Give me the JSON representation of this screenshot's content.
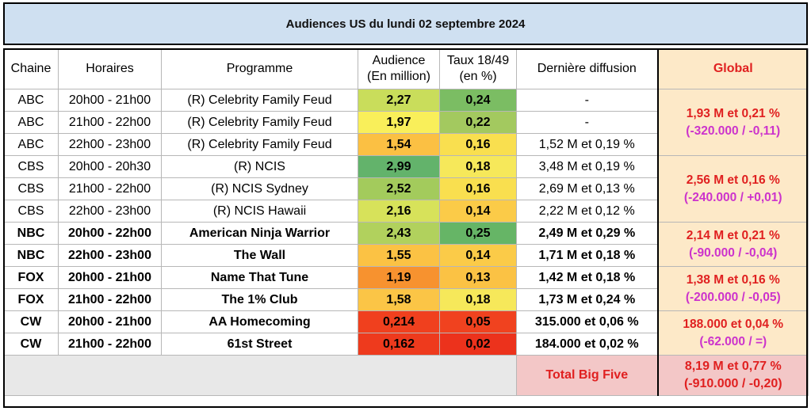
{
  "title": "Audiences US du lundi 02 septembre 2024",
  "headers": {
    "chaine": "Chaine",
    "horaires": "Horaires",
    "programme": "Programme",
    "audience_l1": "Audience",
    "audience_l2": "(En million)",
    "taux_l1": "Taux 18/49",
    "taux_l2": "(en %)",
    "derniere": "Dernière diffusion",
    "global": "Global"
  },
  "rows": [
    {
      "chaine": "ABC",
      "horaires": "20h00 - 21h00",
      "programme": "(R) Celebrity Family Feud",
      "audience": "2,27",
      "taux": "0,24",
      "derniere": "-",
      "aud_color": "#c9dd5b",
      "rat_color": "#7bbd63"
    },
    {
      "chaine": "ABC",
      "horaires": "21h00 - 22h00",
      "programme": "(R) Celebrity Family Feud",
      "audience": "1,97",
      "taux": "0,22",
      "derniere": "-",
      "aud_color": "#f9ef5a",
      "rat_color": "#a3c95f"
    },
    {
      "chaine": "ABC",
      "horaires": "22h00 - 23h00",
      "programme": "(R) Celebrity Family Feud",
      "audience": "1,54",
      "taux": "0,16",
      "derniere": "1,52 M et 0,19 %",
      "aud_color": "#fbc043",
      "rat_color": "#f9df4f"
    },
    {
      "chaine": "CBS",
      "horaires": "20h00 - 20h30",
      "programme": "(R) NCIS",
      "audience": "2,99",
      "taux": "0,18",
      "derniere": "3,48 M et 0,19 %",
      "aud_color": "#63b36b",
      "rat_color": "#f6e85a"
    },
    {
      "chaine": "CBS",
      "horaires": "21h00 - 22h00",
      "programme": "(R) NCIS Sydney",
      "audience": "2,52",
      "taux": "0,16",
      "derniere": "2,69 M et 0,13 %",
      "aud_color": "#a3cb5c",
      "rat_color": "#f9df4f"
    },
    {
      "chaine": "CBS",
      "horaires": "22h00 - 23h00",
      "programme": "(R) NCIS Hawaii",
      "audience": "2,16",
      "taux": "0,14",
      "derniere": "2,22 M et 0,12 %",
      "aud_color": "#d7e25a",
      "rat_color": "#fbcb48"
    },
    {
      "chaine": "NBC",
      "horaires": "20h00 - 22h00",
      "programme": "American Ninja Warrior",
      "audience": "2,43",
      "taux": "0,25",
      "derniere": "2,49 M et 0,29 %",
      "aud_color": "#b1d15d",
      "rat_color": "#66b566"
    },
    {
      "chaine": "NBC",
      "horaires": "22h00 - 23h00",
      "programme": "The Wall",
      "audience": "1,55",
      "taux": "0,14",
      "derniere": "1,71 M et 0,18 %",
      "aud_color": "#fbc244",
      "rat_color": "#fbcb48"
    },
    {
      "chaine": "FOX",
      "horaires": "20h00 - 21h00",
      "programme": "Name That Tune",
      "audience": "1,19",
      "taux": "0,13",
      "derniere": "1,42 M et 0,18 %",
      "aud_color": "#f7922f",
      "rat_color": "#fbc244"
    },
    {
      "chaine": "FOX",
      "horaires": "21h00 - 22h00",
      "programme": "The 1% Club",
      "audience": "1,58",
      "taux": "0,18",
      "derniere": "1,73 M et 0,24 %",
      "aud_color": "#fbc546",
      "rat_color": "#f6e85a"
    },
    {
      "chaine": "CW",
      "horaires": "20h00 - 21h00",
      "programme": "AA Homecoming",
      "audience": "0,214",
      "taux": "0,05",
      "derniere": "315.000 et 0,06 %",
      "aud_color": "#f0401e",
      "rat_color": "#f0421f"
    },
    {
      "chaine": "CW",
      "horaires": "21h00 - 22h00",
      "programme": "61st Street",
      "audience": "0,162",
      "taux": "0,02",
      "derniere": "184.000 et 0,02 %",
      "aud_color": "#ee3a1d",
      "rat_color": "#ec321c"
    }
  ],
  "globals": [
    {
      "l1": "1,93 M et 0,21 %",
      "l2": "(-320.000 / -0,11)"
    },
    {
      "l1": "2,56 M et 0,16 %",
      "l2": "(-240.000 / +0,01)"
    },
    {
      "l1": "2,14 M et 0,21 %",
      "l2": "(-90.000 / -0,04)"
    },
    {
      "l1": "1,38 M et 0,16 %",
      "l2": "(-200.000 / -0,05)"
    },
    {
      "l1": "188.000 et 0,04 %",
      "l2": "(-62.000 / =)"
    }
  ],
  "total": {
    "label": "Total Big Five",
    "l1": "8,19 M et 0,77 %",
    "l2": "(-910.000 / -0,20)"
  },
  "colors": {
    "title_bg": "#cfe0f1",
    "global_bg": "#fde9c8",
    "global_text": "#e02020",
    "delta_text": "#cc33cc",
    "total_bg": "#f3c7c7",
    "footer_bg": "#e8e8e8"
  }
}
